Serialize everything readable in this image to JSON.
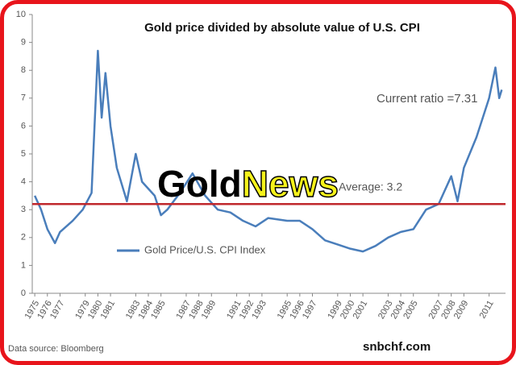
{
  "chart_data": {
    "type": "line",
    "title": "Gold price divided by absolute value of U.S. CPI",
    "x": [
      1975,
      1975.5,
      1976,
      1976.6,
      1977,
      1978,
      1978.8,
      1979.5,
      1980,
      1980.3,
      1980.6,
      1981,
      1981.5,
      1982.3,
      1983,
      1983.5,
      1984.5,
      1985,
      1985.5,
      1986.5,
      1987.5,
      1988.5,
      1989.5,
      1990.5,
      1991.5,
      1992.5,
      1993.5,
      1995,
      1996,
      1997,
      1998,
      1999,
      2000,
      2001,
      2002,
      2003,
      2004,
      2005,
      2006,
      2007,
      2008,
      2008.5,
      2009,
      2010,
      2011,
      2011.5,
      2011.8,
      2012
    ],
    "series": [
      {
        "name": "Gold Price/U.S. CPI Index",
        "color": "#4a7ebb",
        "values": [
          3.5,
          3.0,
          2.3,
          1.8,
          2.2,
          2.6,
          3.0,
          3.6,
          8.7,
          6.3,
          7.9,
          6.0,
          4.5,
          3.3,
          5.0,
          4.0,
          3.5,
          2.8,
          3.0,
          3.6,
          4.3,
          3.5,
          3.0,
          2.9,
          2.6,
          2.4,
          2.7,
          2.6,
          2.6,
          2.3,
          1.9,
          1.75,
          1.6,
          1.5,
          1.7,
          2.0,
          2.2,
          2.3,
          3.0,
          3.2,
          4.2,
          3.3,
          4.5,
          5.6,
          7.0,
          8.1,
          7.0,
          7.3
        ]
      }
    ],
    "xlim": [
      1974.8,
      2012.3
    ],
    "xticks": [
      1975,
      1976,
      1977,
      1979,
      1980,
      1981,
      1983,
      1984,
      1985,
      1987,
      1988,
      1989,
      1991,
      1992,
      1993,
      1995,
      1996,
      1997,
      1999,
      2000,
      2001,
      2003,
      2004,
      2005,
      2007,
      2008,
      2009,
      2011
    ],
    "ylim": [
      0,
      10
    ],
    "yticks": [
      0,
      1,
      2,
      3,
      4,
      5,
      6,
      7,
      8,
      9,
      10
    ],
    "reference_line": {
      "value": 3.2,
      "color": "#c0282d",
      "label": "Average: 3.2"
    },
    "annotation": "Current ratio =7.31",
    "source": "Data source: Bloomberg"
  },
  "site": "snbchf.com",
  "watermark": {
    "first": "Gold",
    "second": "News"
  }
}
